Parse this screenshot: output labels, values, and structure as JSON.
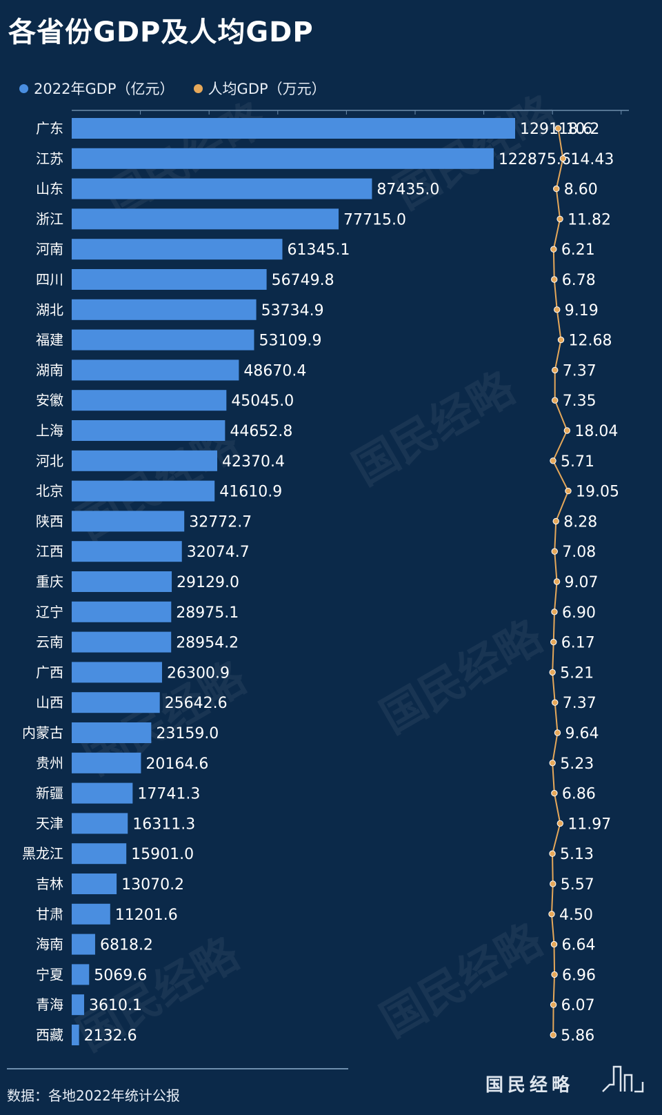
{
  "title": "各省份GDP及人均GDP",
  "legend": {
    "gdp": "2022年GDP（亿元）",
    "per_capita": "人均GDP（万元）"
  },
  "colors": {
    "background": "#0b2949",
    "bar": "#4a8ee0",
    "line": "#e6a85a",
    "text": "#ffffff"
  },
  "source": "数据：各地2022年统计公报",
  "brand": "国民经略",
  "watermark": "国民经略",
  "chart_data": {
    "type": "bar",
    "categories": [
      "广东",
      "江苏",
      "山东",
      "浙江",
      "河南",
      "四川",
      "湖北",
      "福建",
      "湖南",
      "安徽",
      "上海",
      "河北",
      "北京",
      "陕西",
      "江西",
      "重庆",
      "辽宁",
      "云南",
      "广西",
      "山西",
      "内蒙古",
      "贵州",
      "新疆",
      "天津",
      "黑龙江",
      "吉林",
      "甘肃",
      "海南",
      "宁夏",
      "青海",
      "西藏"
    ],
    "series": [
      {
        "name": "2022年GDP（亿元）",
        "type": "bar",
        "values": [
          129118.6,
          122875.6,
          87435.0,
          77715.0,
          61345.1,
          56749.8,
          53734.9,
          53109.9,
          48670.4,
          45045.0,
          44652.8,
          42370.4,
          41610.9,
          32772.7,
          32074.7,
          29129.0,
          28975.1,
          28954.2,
          26300.9,
          25642.6,
          23159.0,
          20164.6,
          17741.3,
          16311.3,
          15901.0,
          13070.2,
          11201.6,
          6818.2,
          5069.6,
          3610.1,
          2132.6
        ],
        "labels": [
          "129118.6",
          "122875.6",
          "87435.0",
          "77715.0",
          "61345.1",
          "56749.8",
          "53734.9",
          "53109.9",
          "48670.4",
          "45045.0",
          "44652.8",
          "42370.4",
          "41610.9",
          "32772.7",
          "32074.7",
          "29129.0",
          "28975.1",
          "28954.2",
          "26300.9",
          "25642.6",
          "23159.0",
          "20164.6",
          "17741.3",
          "16311.3",
          "15901.0",
          "13070.2",
          "11201.6",
          "6818.2",
          "5069.6",
          "3610.1",
          "2132.6"
        ]
      },
      {
        "name": "人均GDP（万元）",
        "type": "line",
        "values": [
          10.2,
          14.43,
          8.6,
          11.82,
          6.21,
          6.78,
          9.19,
          12.68,
          7.37,
          7.35,
          18.04,
          5.71,
          19.05,
          8.28,
          7.08,
          9.07,
          6.9,
          6.17,
          5.21,
          7.37,
          9.64,
          5.23,
          6.86,
          11.97,
          5.13,
          5.57,
          4.5,
          6.64,
          6.96,
          6.07,
          5.86
        ],
        "labels": [
          "10.2",
          "14.43",
          "8.60",
          "11.82",
          "6.21",
          "6.78",
          "9.19",
          "12.68",
          "7.37",
          "7.35",
          "18.04",
          "5.71",
          "19.05",
          "8.28",
          "7.08",
          "9.07",
          "6.90",
          "6.17",
          "5.21",
          "7.37",
          "9.64",
          "5.23",
          "6.86",
          "11.97",
          "5.13",
          "5.57",
          "4.50",
          "6.64",
          "6.96",
          "6.07",
          "5.86"
        ]
      }
    ],
    "orientation": "horizontal",
    "xlim": [
      0,
      200000
    ],
    "grid": true,
    "legend_position": "top-left"
  }
}
